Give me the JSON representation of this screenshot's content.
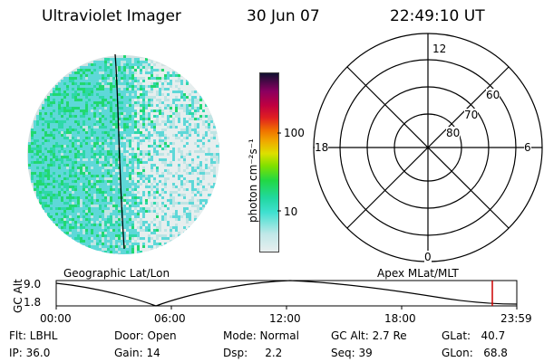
{
  "header": {
    "instrument": "Ultraviolet Imager",
    "date": "30 Jun 07",
    "time": "22:49:10 UT"
  },
  "colorbar": {
    "unit_label": "photon cm⁻²s⁻¹",
    "ticks": [
      "100",
      "10"
    ],
    "scale": "log",
    "colors": [
      "#dfe8e8",
      "#bfe8e8",
      "#3fe0d0",
      "#21d8a0",
      "#22d843",
      "#7fe000",
      "#dde000",
      "#f0a800",
      "#f07000",
      "#e02020",
      "#c00040",
      "#a00060",
      "#5a0070",
      "#101030"
    ]
  },
  "polar_plot": {
    "mlt_labels": {
      "top": "12",
      "left": "18",
      "right": "6",
      "bottom": "0"
    },
    "lat_labels": [
      "60",
      "70",
      "80"
    ]
  },
  "timeline": {
    "left_label": "Geographic Lat/Lon",
    "right_label": "Apex MLat/MLT",
    "y_axis_title": "GC Alt",
    "y_ticks": [
      "9.0",
      "1.8"
    ],
    "x_ticks": [
      "00:00",
      "06:00",
      "12:00",
      "18:00",
      "23:59"
    ],
    "current_time_marker_color": "#cc0000"
  },
  "info": {
    "flt": "Flt: LBHL",
    "ip": "IP: 36.0",
    "door": "Door: Open",
    "gain": "Gain: 14",
    "mode": "Mode: Normal",
    "dsp": "Dsp:     2.2",
    "gc_alt": "GC Alt: 2.7 Re",
    "seq": "Seq: 39",
    "glat": "GLat:   40.7",
    "glon": "GLon:   68.8"
  }
}
